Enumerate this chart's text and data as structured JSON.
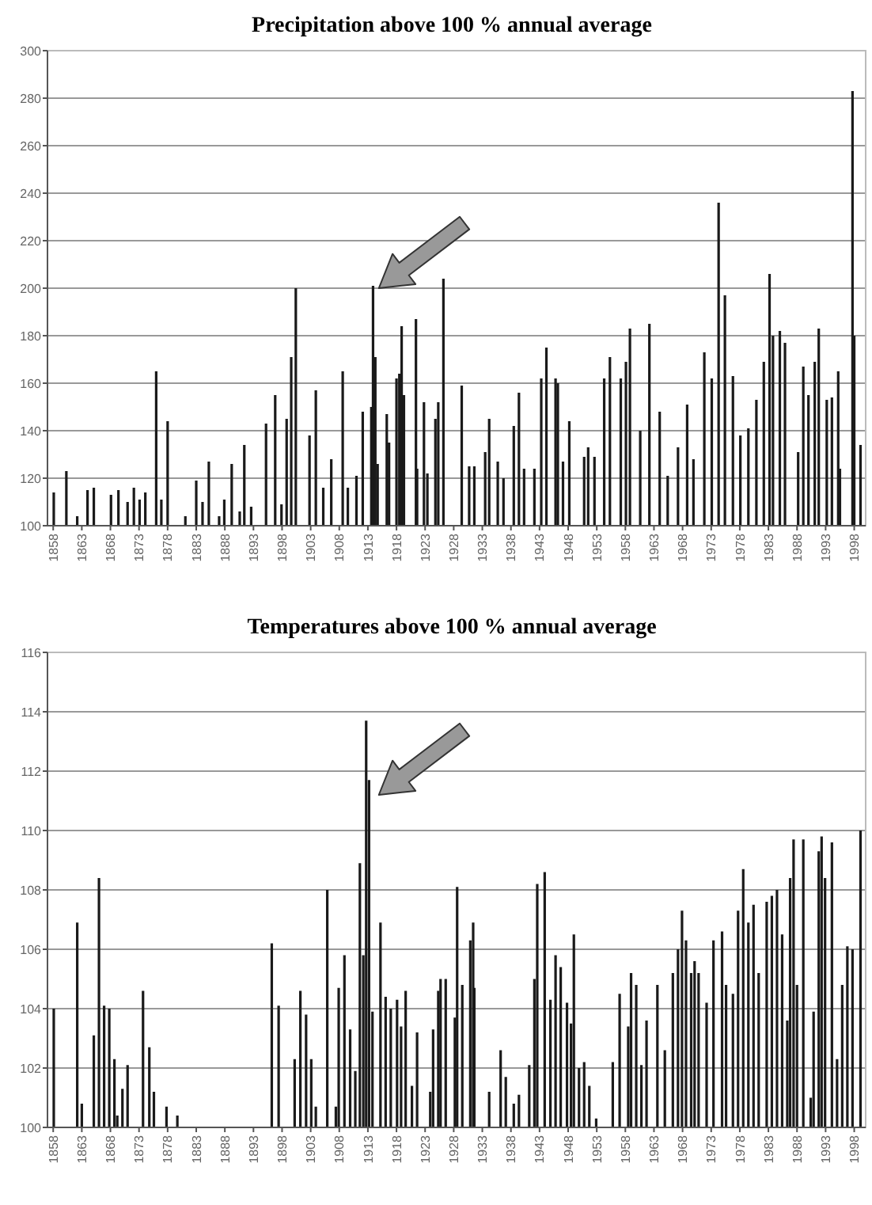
{
  "chart_data": [
    {
      "type": "bar",
      "title": "Precipitation above 100 % annual average",
      "xlim": [
        1857,
        2000
      ],
      "xticks": [
        1858,
        1863,
        1868,
        1873,
        1878,
        1883,
        1888,
        1893,
        1898,
        1903,
        1908,
        1913,
        1918,
        1923,
        1928,
        1933,
        1938,
        1943,
        1948,
        1953,
        1958,
        1963,
        1968,
        1973,
        1978,
        1983,
        1988,
        1993,
        1998
      ],
      "ylim": [
        100,
        300
      ],
      "yticks": [
        100,
        120,
        140,
        160,
        180,
        200,
        220,
        240,
        260,
        280,
        300
      ],
      "grid": "y",
      "x": [
        1858.1,
        1860.3,
        1862.2,
        1864.0,
        1865.1,
        1868.1,
        1869.4,
        1871.0,
        1872.1,
        1873.1,
        1874.1,
        1876.0,
        1876.9,
        1878.0,
        1881.1,
        1883.0,
        1884.1,
        1885.2,
        1887.0,
        1887.9,
        1889.2,
        1890.6,
        1891.4,
        1892.6,
        1895.2,
        1896.8,
        1897.9,
        1898.8,
        1899.6,
        1900.4,
        1902.8,
        1903.9,
        1905.2,
        1906.6,
        1908.6,
        1909.5,
        1911.0,
        1912.1,
        1913.6,
        1913.9,
        1914.3,
        1914.7,
        1916.3,
        1916.7,
        1918.0,
        1918.5,
        1918.9,
        1919.3,
        1921.4,
        1921.6,
        1922.8,
        1923.4,
        1924.8,
        1925.3,
        1926.2,
        1929.4,
        1930.7,
        1931.6,
        1933.5,
        1934.2,
        1935.7,
        1936.7,
        1938.5,
        1939.4,
        1940.3,
        1942.1,
        1943.3,
        1944.2,
        1945.8,
        1946.2,
        1947.1,
        1948.2,
        1950.8,
        1951.5,
        1952.6,
        1954.3,
        1955.3,
        1957.2,
        1958.1,
        1958.8,
        1960.6,
        1962.2,
        1964.0,
        1965.4,
        1967.2,
        1968.8,
        1969.9,
        1971.8,
        1973.1,
        1974.3,
        1975.4,
        1976.8,
        1978.1,
        1979.5,
        1980.9,
        1982.2,
        1983.2,
        1983.8,
        1985.0,
        1985.9,
        1988.2,
        1989.1,
        1990.0,
        1991.1,
        1991.8,
        1993.2,
        1994.1,
        1995.2,
        1995.5,
        1997.7,
        1998.0,
        1999.1
      ],
      "series": [
        {
          "color": "#1a1a1a",
          "values": [
            114,
            123,
            104,
            115,
            116,
            113,
            115,
            110,
            116,
            111,
            114,
            165,
            111,
            144,
            104,
            119,
            110,
            127,
            104,
            111,
            126,
            106,
            134,
            108,
            143,
            155,
            109,
            145,
            171,
            200,
            138,
            157,
            116,
            128,
            165,
            116,
            121,
            148,
            150,
            201,
            171,
            126,
            147,
            135,
            162,
            164,
            184,
            155,
            187,
            124,
            152,
            122,
            145,
            152,
            204,
            159,
            125,
            125,
            131,
            145,
            127,
            120,
            142,
            156,
            124,
            124,
            162,
            175,
            162,
            160,
            127,
            144,
            129,
            133,
            129,
            162,
            171,
            162,
            169,
            183,
            140,
            185,
            148,
            121,
            133,
            151,
            128,
            173,
            162,
            236,
            197,
            163,
            138,
            141,
            153,
            169,
            206,
            180,
            182,
            177,
            131,
            167,
            155,
            169,
            183,
            153,
            154,
            165,
            124,
            283,
            180,
            134
          ]
        }
      ]
    },
    {
      "type": "bar",
      "title": "Temperatures above 100 % annual average",
      "xlim": [
        1857,
        2000
      ],
      "xticks": [
        1858,
        1863,
        1868,
        1873,
        1878,
        1883,
        1888,
        1893,
        1898,
        1903,
        1908,
        1913,
        1918,
        1923,
        1928,
        1933,
        1938,
        1943,
        1948,
        1953,
        1958,
        1963,
        1968,
        1973,
        1978,
        1983,
        1988,
        1993,
        1998
      ],
      "ylim": [
        100,
        116
      ],
      "yticks": [
        100,
        102,
        104,
        106,
        108,
        110,
        112,
        114,
        116
      ],
      "grid": "y",
      "x": [
        1858.1,
        1862.2,
        1863.0,
        1865.1,
        1866.0,
        1866.9,
        1867.8,
        1868.7,
        1869.2,
        1870.1,
        1871.0,
        1873.7,
        1874.8,
        1875.6,
        1877.8,
        1879.7,
        1896.2,
        1897.4,
        1900.2,
        1901.2,
        1902.2,
        1903.1,
        1903.9,
        1905.9,
        1907.4,
        1907.9,
        1908.9,
        1909.9,
        1910.8,
        1911.6,
        1912.2,
        1912.7,
        1913.2,
        1913.8,
        1915.2,
        1916.1,
        1917.0,
        1918.1,
        1918.8,
        1919.6,
        1920.7,
        1921.6,
        1923.9,
        1924.4,
        1925.3,
        1925.7,
        1926.6,
        1928.2,
        1928.6,
        1929.5,
        1930.9,
        1931.4,
        1931.6,
        1934.2,
        1936.2,
        1937.1,
        1938.5,
        1939.4,
        1941.2,
        1942.1,
        1942.6,
        1943.9,
        1944.9,
        1945.8,
        1946.7,
        1947.8,
        1948.5,
        1949.0,
        1949.9,
        1950.8,
        1951.7,
        1952.9,
        1955.8,
        1957.0,
        1958.5,
        1959.0,
        1959.9,
        1960.8,
        1961.7,
        1963.6,
        1964.9,
        1966.3,
        1967.2,
        1967.9,
        1968.6,
        1969.5,
        1970.1,
        1970.8,
        1972.2,
        1973.4,
        1974.9,
        1975.6,
        1976.8,
        1977.7,
        1978.6,
        1979.5,
        1980.4,
        1981.3,
        1982.7,
        1983.6,
        1984.5,
        1985.4,
        1986.3,
        1986.8,
        1987.4,
        1988.0,
        1989.1,
        1990.4,
        1990.9,
        1991.8,
        1992.3,
        1992.9,
        1994.1,
        1995.0,
        1995.9,
        1996.8,
        1997.7,
        1999.1
      ],
      "series": [
        {
          "color": "#1a1a1a",
          "values": [
            104.0,
            106.9,
            100.8,
            103.1,
            108.4,
            104.1,
            104.0,
            102.3,
            100.4,
            101.3,
            102.1,
            104.6,
            102.7,
            101.2,
            100.7,
            100.4,
            106.2,
            104.1,
            102.3,
            104.6,
            103.8,
            102.3,
            100.7,
            108.0,
            100.7,
            104.7,
            105.8,
            103.3,
            101.9,
            108.9,
            105.8,
            113.7,
            111.7,
            103.9,
            106.9,
            104.4,
            104.0,
            104.3,
            103.4,
            104.6,
            101.4,
            103.2,
            101.2,
            103.3,
            104.6,
            105.0,
            105.0,
            103.7,
            108.1,
            104.8,
            106.3,
            106.9,
            104.7,
            101.2,
            102.6,
            101.7,
            100.8,
            101.1,
            102.1,
            105.0,
            108.2,
            108.6,
            104.3,
            105.8,
            105.4,
            104.2,
            103.5,
            106.5,
            102.0,
            102.2,
            101.4,
            100.3,
            102.2,
            104.5,
            103.4,
            105.2,
            104.8,
            102.1,
            103.6,
            104.8,
            102.6,
            105.2,
            106.0,
            107.3,
            106.3,
            105.2,
            105.6,
            105.2,
            104.2,
            106.3,
            106.6,
            104.8,
            104.5,
            107.3,
            108.7,
            106.9,
            107.5,
            105.2,
            107.6,
            107.8,
            108.0,
            106.5,
            103.6,
            108.4,
            109.7,
            104.8,
            109.7,
            101.0,
            103.9,
            109.3,
            109.8,
            108.4,
            109.6,
            102.3,
            104.8,
            106.1,
            106.0,
            110.0
          ]
        }
      ]
    }
  ]
}
